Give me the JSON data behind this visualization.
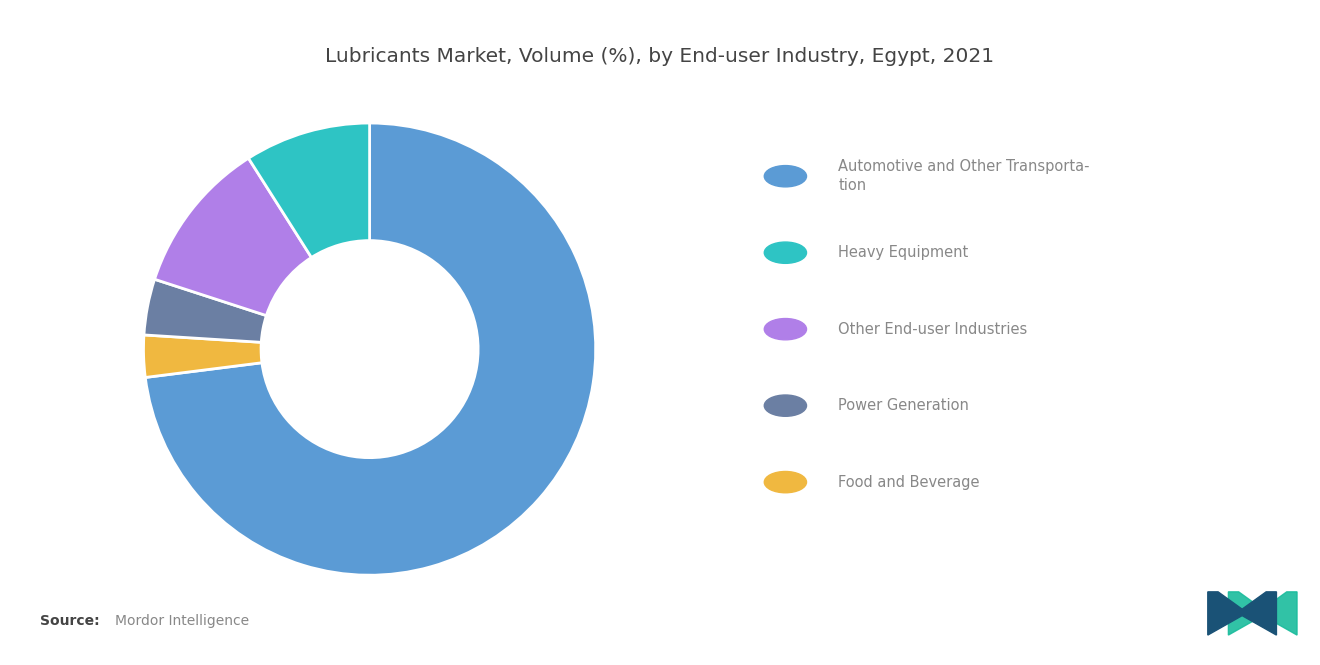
{
  "title": "Lubricants Market, Volume (%), by End-user Industry, Egypt, 2021",
  "title_fontsize": 14.5,
  "title_color": "#444444",
  "segments": [
    {
      "label": "Automotive and Other Transporta-\ntion",
      "value": 73,
      "color": "#5B9BD5"
    },
    {
      "label": "Food and Beverage",
      "value": 3,
      "color": "#F0B840"
    },
    {
      "label": "Power Generation",
      "value": 4,
      "color": "#6B7FA3"
    },
    {
      "label": "Other End-user Industries",
      "value": 11,
      "color": "#B07FE8"
    },
    {
      "label": "Heavy Equipment",
      "value": 9,
      "color": "#2EC4C4"
    }
  ],
  "legend_labels": [
    "Automotive and Other Transporta-\ntion",
    "Heavy Equipment",
    "Other End-user Industries",
    "Power Generation",
    "Food and Beverage"
  ],
  "legend_colors": [
    "#5B9BD5",
    "#2EC4C4",
    "#B07FE8",
    "#6B7FA3",
    "#F0B840"
  ],
  "source_bold": "Source:",
  "source_normal": "  Mordor Intelligence",
  "background_color": "#FFFFFF",
  "wedge_edge_color": "#FFFFFF"
}
